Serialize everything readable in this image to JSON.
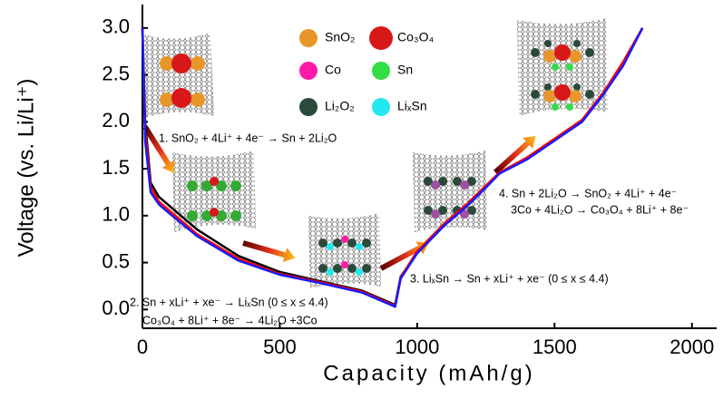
{
  "chart_data": {
    "type": "line",
    "xlabel": "Capacity (mAh/g)",
    "ylabel": "Voltage (vs. Li/Li⁺)",
    "xlim": [
      0,
      2090
    ],
    "ylim": [
      -0.2,
      3.25
    ],
    "xticks": [
      0,
      500,
      1000,
      1500,
      2000
    ],
    "yticks": [
      {
        "value": 0,
        "label": "0.0"
      },
      0.5,
      {
        "value": 1,
        "label": "1.0"
      },
      1.5,
      {
        "value": 2,
        "label": "2.0"
      },
      2.5,
      {
        "value": 3,
        "label": "3.0"
      }
    ],
    "x": [
      0,
      10,
      30,
      60,
      100,
      200,
      350,
      500,
      650,
      800,
      920,
      940,
      1000,
      1100,
      1180,
      1250,
      1300,
      1400,
      1500,
      1600,
      1680,
      1750,
      1820
    ],
    "series": [
      {
        "color": "#000000",
        "values": [
          3.0,
          2.0,
          1.35,
          1.2,
          1.1,
          0.85,
          0.57,
          0.4,
          0.3,
          0.2,
          0.05,
          0.35,
          0.6,
          0.9,
          1.1,
          1.3,
          1.45,
          1.6,
          1.8,
          2.0,
          2.3,
          2.62,
          3.0
        ]
      },
      {
        "color": "#ff0000",
        "values": [
          3.0,
          1.9,
          1.3,
          1.15,
          1.05,
          0.8,
          0.54,
          0.38,
          0.29,
          0.19,
          0.04,
          0.34,
          0.62,
          0.92,
          1.12,
          1.32,
          1.46,
          1.62,
          1.82,
          2.02,
          2.32,
          2.64,
          3.0
        ]
      },
      {
        "color": "#1a1aff",
        "values": [
          3.0,
          1.8,
          1.25,
          1.12,
          1.02,
          0.78,
          0.52,
          0.37,
          0.28,
          0.18,
          0.03,
          0.33,
          0.6,
          0.9,
          1.1,
          1.3,
          1.45,
          1.6,
          1.8,
          2.0,
          2.3,
          2.6,
          3.0
        ]
      }
    ],
    "annotations": [
      "1. SnO₂ + 4Li⁺ + 4e⁻ → Sn + 2Li₂O",
      "2. Sn + xLi⁺ + xe⁻ → LiₓSn (0 ≤ x ≤ 4.4)",
      "Co₃O₄ + 8Li⁺ + 8e⁻ → 4Li₂O +3Co",
      "3. LiₓSn → Sn + xLi⁺ + xe⁻ (0 ≤ x ≤ 4.4)",
      "4. Sn + 2Li₂O → SnO₂ + 4Li⁺ + 4e⁻",
      "3Co + 4Li₂O → Co₃O₄ + 8Li⁺ + 8e⁻"
    ],
    "key": [
      {
        "label": "SnO₂",
        "color": "#e8962a"
      },
      {
        "label": "Co₃O₄",
        "color": "#d81818"
      },
      {
        "label": "Co",
        "color": "#ff1aa8"
      },
      {
        "label": "Sn",
        "color": "#33dd44"
      },
      {
        "label": "Li₂O₂",
        "color": "#2c4a3c"
      },
      {
        "label": "LiₓSn",
        "color": "#22e8f0"
      }
    ]
  }
}
